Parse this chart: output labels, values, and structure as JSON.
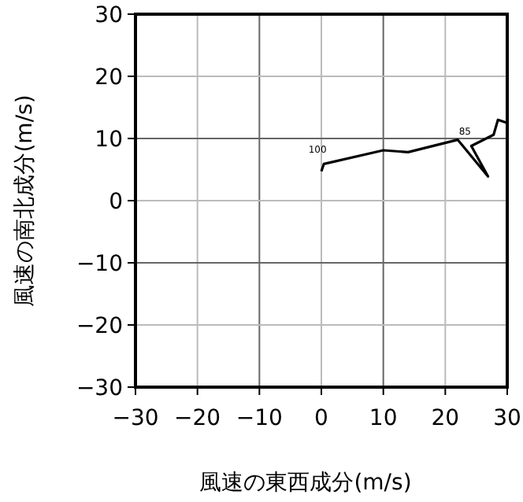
{
  "chart_data": {
    "type": "line",
    "xlabel": "風速の東西成分(m/s)",
    "ylabel": "風速の南北成分(m/s)",
    "series": [
      {
        "color": "#000000",
        "x": [
          0,
          0.4,
          10,
          14,
          22,
          26.9,
          24.2,
          27.8,
          28.5,
          30
        ],
        "values": [
          4.7,
          5.9,
          8.1,
          7.8,
          9.8,
          3.9,
          8.8,
          10.6,
          13,
          12.5
        ]
      }
    ],
    "xlim": [
      -30,
      30
    ],
    "ylim": [
      -30,
      30
    ],
    "xticks": [
      -30,
      -20,
      -10,
      0,
      10,
      20,
      30
    ],
    "yticks": [
      -30,
      -20,
      -10,
      0,
      10,
      20,
      30
    ],
    "grid": true,
    "marker": "none",
    "line_style": "solid",
    "annotations": [
      {
        "text": "100",
        "x": 0.4,
        "y": 5.9
      },
      {
        "text": "85",
        "x": 24.2,
        "y": 8.8
      }
    ]
  }
}
